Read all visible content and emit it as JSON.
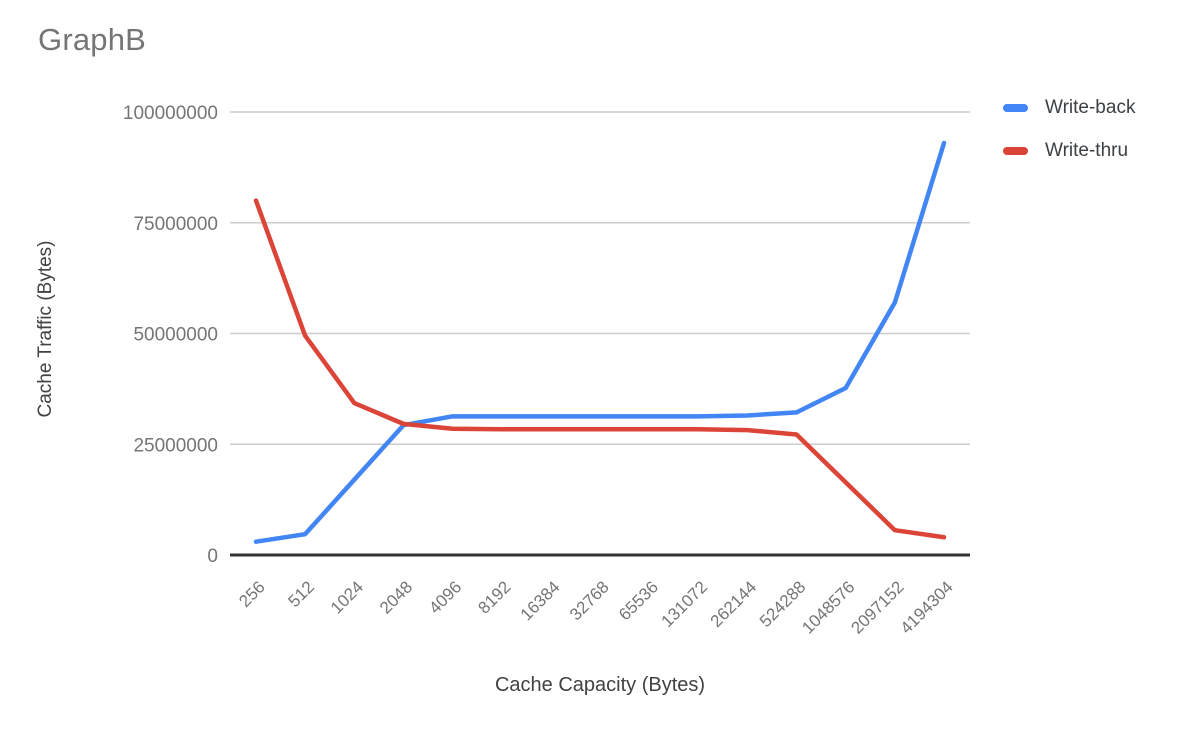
{
  "chart_data": {
    "type": "line",
    "title": "GraphB",
    "xlabel": "Cache Capacity (Bytes)",
    "ylabel": "Cache Traffic (Bytes)",
    "categories": [
      "256",
      "512",
      "1024",
      "2048",
      "4096",
      "8192",
      "16384",
      "32768",
      "65536",
      "131072",
      "262144",
      "524288",
      "1048576",
      "2097152",
      "4194304"
    ],
    "series": [
      {
        "name": "Write-back",
        "color": "#4285F4",
        "values": [
          3000000,
          4700000,
          17000000,
          29300000,
          31300000,
          31300000,
          31300000,
          31300000,
          31300000,
          31300000,
          31500000,
          32200000,
          37700000,
          57000000,
          93000000
        ]
      },
      {
        "name": "Write-thru",
        "color": "#DB4437",
        "values": [
          80000000,
          49500000,
          34300000,
          29600000,
          28500000,
          28400000,
          28400000,
          28400000,
          28400000,
          28400000,
          28200000,
          27200000,
          16400000,
          5600000,
          4000000
        ]
      }
    ],
    "ylim": [
      0,
      100000000
    ],
    "y_ticks": [
      0,
      25000000,
      50000000,
      75000000,
      100000000
    ],
    "y_tick_labels": [
      "0",
      "25000000",
      "50000000",
      "75000000",
      "100000000"
    ],
    "grid": true,
    "legend_position": "right"
  },
  "styles": {
    "background": "#ffffff",
    "title_color": "#757575",
    "tick_label_color": "#757575",
    "axis_title_color": "#424242",
    "legend_text_color": "#3c4043",
    "gridline_color": "#cccccc",
    "axis_line_color": "#333333"
  }
}
